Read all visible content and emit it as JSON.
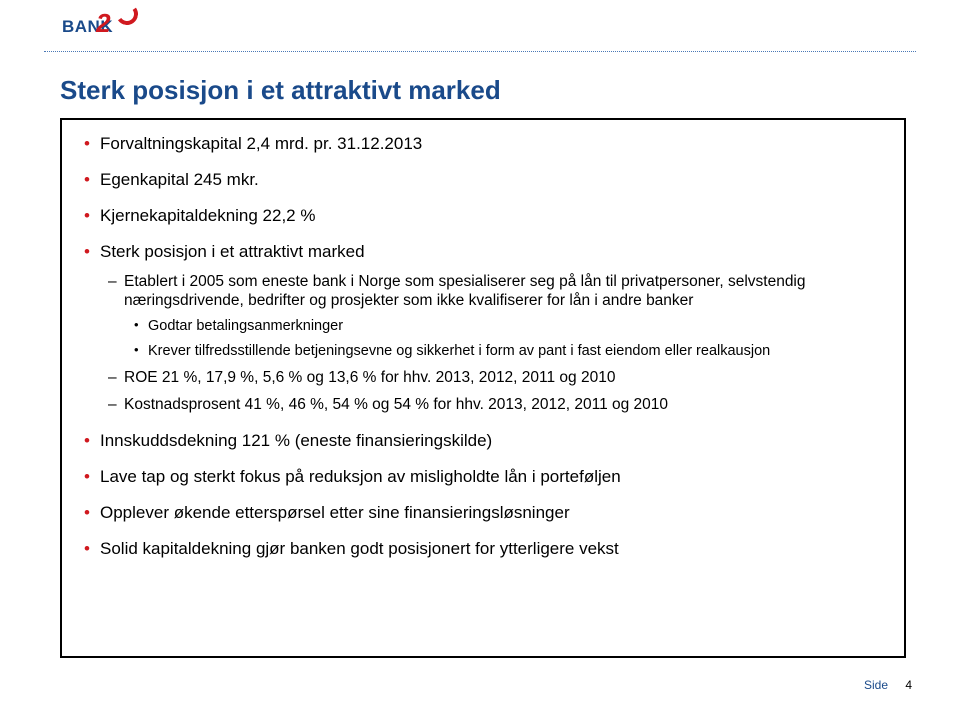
{
  "logo": {
    "text": "BANK",
    "digit": "2"
  },
  "title": "Sterk posisjon i et attraktivt marked",
  "bullets": [
    {
      "text": "Forvaltningskapital 2,4 mrd. pr. 31.12.2013"
    },
    {
      "text": "Egenkapital 245 mkr."
    },
    {
      "text": "Kjernekapitaldekning 22,2 %"
    },
    {
      "text": "Sterk posisjon i et attraktivt marked",
      "children": [
        {
          "text": "Etablert i 2005 som eneste bank i Norge som spesialiserer seg på lån til privatpersoner, selvstendig næringsdrivende, bedrifter og prosjekter som ikke kvalifiserer for lån i andre banker",
          "children": [
            {
              "text": "Godtar betalingsanmerkninger"
            },
            {
              "text": "Krever tilfredsstillende betjeningsevne og sikkerhet i form av pant i fast eiendom eller realkausjon"
            }
          ]
        },
        {
          "text": "ROE 21 %, 17,9 %, 5,6 % og 13,6 % for hhv. 2013, 2012, 2011 og 2010"
        },
        {
          "text": "Kostnadsprosent 41 %, 46 %, 54 % og 54 % for hhv. 2013, 2012, 2011 og 2010"
        }
      ]
    },
    {
      "text": "Innskuddsdekning 121 % (eneste finansieringskilde)"
    },
    {
      "text": "Lave tap og sterkt fokus på reduksjon av misligholdte lån i porteføljen"
    },
    {
      "text": "Opplever økende etterspørsel etter sine finansieringsløsninger"
    },
    {
      "text": "Solid kapitaldekning gjør banken godt posisjonert for ytterligere vekst"
    }
  ],
  "footer": {
    "label": "Side",
    "page": "4"
  }
}
